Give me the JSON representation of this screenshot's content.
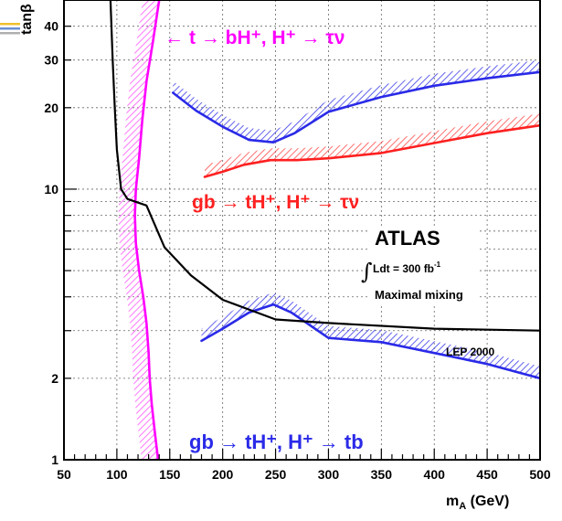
{
  "chart_data": {
    "type": "line",
    "xlabel": "m",
    "xlabel_sub": "A",
    "xlabel_unit": " (GeV)",
    "ylabel": "tanβ",
    "xlim": [
      50,
      500
    ],
    "ylim": [
      1,
      50
    ],
    "yscale": "log",
    "grid": true,
    "x_ticks": [
      50,
      100,
      150,
      200,
      250,
      300,
      350,
      400,
      450,
      500
    ],
    "x_tick_labels": [
      "50",
      "100",
      "150",
      "200",
      "250",
      "300",
      "350",
      "400",
      "450",
      "500"
    ],
    "y_ticks": [
      1,
      2,
      10,
      20,
      30,
      40
    ],
    "y_tick_labels": [
      "1",
      "2",
      "10",
      "20",
      "30",
      "40"
    ],
    "colors": {
      "magenta": "#ff00ff",
      "blue": "#2a2ae8",
      "red": "#ff2020",
      "black": "#000000"
    },
    "series": [
      {
        "name": "t → bH⁺, H⁺ → τν",
        "color": "#ff00ff",
        "hatch_side": "left",
        "x": [
          139,
          136,
          133,
          131,
          130,
          128,
          125,
          121,
          118,
          117,
          118,
          121,
          124,
          128,
          134,
          140
        ],
        "y": [
          1.0,
          1.25,
          1.6,
          2.0,
          2.5,
          3.2,
          4.0,
          5.0,
          6.3,
          8.0,
          10.0,
          13.0,
          18.0,
          25.0,
          35.0,
          50.0
        ]
      },
      {
        "name": "gb → tH⁺, H⁺ → τν",
        "color": "#ff2020",
        "hatch_side": "above",
        "x": [
          183,
          200,
          220,
          245,
          270,
          300,
          350,
          400,
          450,
          500
        ],
        "y": [
          11.1,
          11.6,
          12.3,
          12.8,
          12.8,
          13.0,
          13.6,
          14.8,
          16.1,
          17.2
        ]
      },
      {
        "name": "gb → tH⁺, H⁺ → τν (upper)",
        "color": "#2a2ae8",
        "hatch_side": "above",
        "x": [
          153,
          175,
          200,
          225,
          248,
          268,
          300,
          350,
          400,
          450,
          500
        ],
        "y": [
          22.7,
          19.5,
          17.0,
          15.2,
          14.9,
          16.1,
          19.3,
          21.9,
          24.1,
          25.7,
          27.1
        ]
      },
      {
        "name": "gb → tH⁺, H⁺ → tb",
        "color": "#2a2ae8",
        "hatch_side": "above",
        "x": [
          180,
          200,
          225,
          248,
          265,
          300,
          350,
          400,
          450,
          500
        ],
        "y": [
          2.75,
          3.05,
          3.5,
          3.75,
          3.5,
          2.82,
          2.72,
          2.48,
          2.26,
          2.0
        ]
      },
      {
        "name": "LEP 2000",
        "color": "#000000",
        "hatch_side": "none",
        "x": [
          94,
          96,
          98,
          100,
          104,
          110,
          128,
          145,
          170,
          200,
          250,
          300,
          400,
          500
        ],
        "y": [
          50,
          30,
          20,
          14,
          10,
          9.2,
          8.7,
          6.1,
          4.8,
          3.9,
          3.3,
          3.2,
          3.05,
          3.0
        ]
      }
    ],
    "annotations": {
      "magenta_label_pre": "←",
      "magenta_label": "t → bH⁺, H⁺ → τν",
      "red_label": "gb → tH⁺, H⁺ → τν",
      "blue_label": "gb → tH⁺, H⁺ → tb",
      "experiment": "ATLAS",
      "lumi": "Ldt = 300 fb",
      "lumi_exp": "-1",
      "mixing": "Maximal mixing",
      "lep": "LEP 2000"
    }
  }
}
